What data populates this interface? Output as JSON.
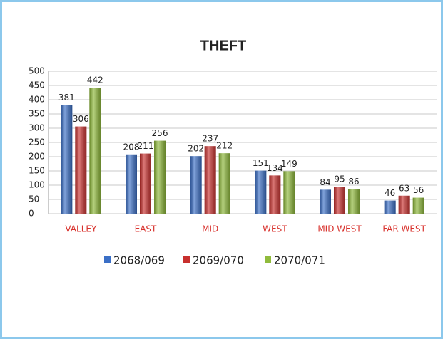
{
  "chart_data": {
    "type": "bar",
    "title": "THEFT",
    "categories": [
      "VALLEY",
      "EAST",
      "MID",
      "WEST",
      "MID WEST",
      "FAR WEST"
    ],
    "series": [
      {
        "name": "2068/069",
        "color": "#3b6fc6",
        "values": [
          381,
          208,
          202,
          151,
          84,
          46
        ]
      },
      {
        "name": "2069/070",
        "color": "#c8302e",
        "values": [
          306,
          211,
          237,
          134,
          95,
          63
        ]
      },
      {
        "name": "2070/071",
        "color": "#90bb3c",
        "values": [
          442,
          256,
          212,
          149,
          86,
          56
        ]
      }
    ],
    "ylim": [
      0,
      500
    ],
    "yticks": [
      0,
      50,
      100,
      150,
      200,
      250,
      300,
      350,
      400,
      450,
      500
    ],
    "grid": true,
    "legend": "bottom"
  }
}
